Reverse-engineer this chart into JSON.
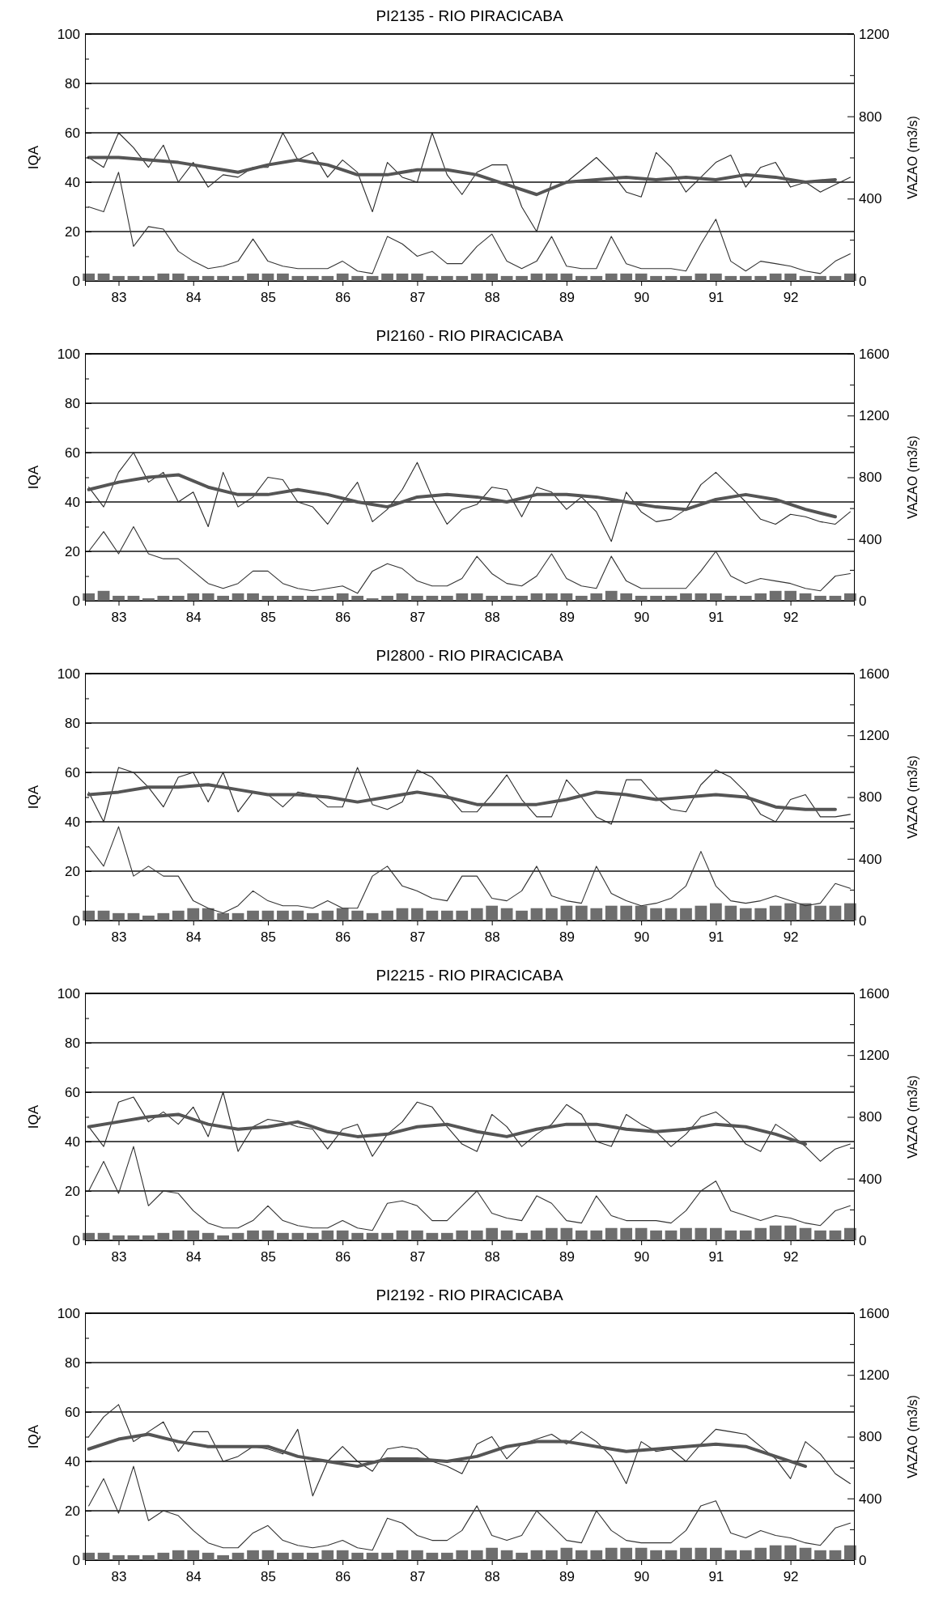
{
  "chart_data": [
    {
      "type": "line",
      "title": "PI2135 - RIO PIRACICABA",
      "ylabel": "IQA",
      "y2label": "VAZAO (m3/s)",
      "grid": "y",
      "xlim": [
        82.55,
        92.85
      ],
      "xticks": [
        83,
        84,
        85,
        86,
        87,
        88,
        89,
        90,
        91,
        92
      ],
      "ylim": [
        0,
        100
      ],
      "yticks": [
        0,
        {
          "value": 10,
          "label": null
        },
        20,
        {
          "value": 30,
          "label": null
        },
        40,
        {
          "value": 50,
          "label": null
        },
        60,
        {
          "value": 70,
          "label": null
        },
        80,
        {
          "value": 90,
          "label": null
        },
        100
      ],
      "y2lim": [
        0,
        1200
      ],
      "y2ticks": [
        0,
        {
          "value": 200,
          "label": null
        },
        400,
        {
          "value": 600,
          "label": null
        },
        800,
        {
          "value": 1000,
          "label": null
        },
        1200
      ],
      "x": [
        82.6,
        82.8,
        83,
        83.2,
        83.4,
        83.6,
        83.8,
        84,
        84.2,
        84.4,
        84.6,
        84.8,
        85,
        85.2,
        85.4,
        85.6,
        85.8,
        86,
        86.2,
        86.4,
        86.6,
        86.8,
        87,
        87.2,
        87.4,
        87.6,
        87.8,
        88,
        88.2,
        88.4,
        88.6,
        88.8,
        89,
        89.2,
        89.4,
        89.6,
        89.8,
        90,
        90.2,
        90.4,
        90.6,
        90.8,
        91,
        91.2,
        91.4,
        91.6,
        91.8,
        92,
        92.2,
        92.4,
        92.6,
        92.8
      ],
      "series": [
        {
          "type": "bar",
          "color": "#6e6e6e",
          "values": [
            3,
            3,
            2,
            2,
            2,
            3,
            3,
            2,
            2,
            2,
            2,
            3,
            3,
            3,
            2,
            2,
            2,
            3,
            2,
            2,
            3,
            3,
            3,
            2,
            2,
            2,
            3,
            3,
            2,
            2,
            3,
            3,
            3,
            2,
            2,
            3,
            3,
            3,
            2,
            2,
            2,
            3,
            3,
            2,
            2,
            2,
            3,
            3,
            2,
            2,
            2,
            3
          ]
        },
        {
          "color": "#2a2a2a",
          "values": [
            50,
            46,
            60,
            54,
            46,
            55,
            40,
            48,
            38,
            43,
            42,
            46,
            46,
            60,
            49,
            52,
            42,
            49,
            44,
            28,
            48,
            42,
            40,
            60,
            43,
            35,
            44,
            47,
            47,
            30,
            20,
            40,
            40,
            45,
            50,
            44,
            36,
            34,
            52,
            46,
            36,
            42,
            48,
            51,
            38,
            46,
            48,
            38,
            40,
            36,
            39,
            42
          ]
        },
        {
          "color": "#555555",
          "x": [
            82.6,
            83,
            83.4,
            83.8,
            84.2,
            84.6,
            85,
            85.4,
            85.8,
            86.2,
            86.6,
            87,
            87.4,
            87.8,
            88.2,
            88.6,
            89,
            89.4,
            89.8,
            90.2,
            90.6,
            91,
            91.4,
            91.8,
            92.2,
            92.6
          ],
          "values": [
            50,
            50,
            49,
            48,
            46,
            44,
            47,
            49,
            47,
            43,
            43,
            45,
            45,
            43,
            39,
            35,
            40,
            41,
            42,
            41,
            42,
            41,
            43,
            42,
            40,
            41
          ]
        },
        {
          "axis": "y2",
          "color": "#333333",
          "values": [
            360,
            336,
            528,
            168,
            264,
            252,
            144,
            96,
            60,
            72,
            96,
            204,
            96,
            72,
            60,
            60,
            60,
            96,
            48,
            36,
            216,
            180,
            120,
            144,
            84,
            84,
            168,
            228,
            96,
            60,
            96,
            216,
            72,
            60,
            60,
            216,
            84,
            60,
            60,
            60,
            48,
            180,
            300,
            96,
            48,
            96,
            84,
            72,
            48,
            36,
            96,
            132
          ]
        }
      ]
    },
    {
      "type": "line",
      "title": "PI2160 - RIO PIRACICABA",
      "ylabel": "IQA",
      "y2label": "VAZAO (m3/s)",
      "grid": "y",
      "xlim": [
        82.55,
        92.85
      ],
      "xticks": [
        83,
        84,
        85,
        86,
        87,
        88,
        89,
        90,
        91,
        92
      ],
      "ylim": [
        0,
        100
      ],
      "yticks": [
        0,
        {
          "value": 10,
          "label": null
        },
        20,
        {
          "value": 30,
          "label": null
        },
        40,
        {
          "value": 50,
          "label": null
        },
        60,
        {
          "value": 70,
          "label": null
        },
        80,
        {
          "value": 90,
          "label": null
        },
        100
      ],
      "y2lim": [
        0,
        1600
      ],
      "y2ticks": [
        0,
        {
          "value": 200,
          "label": null
        },
        400,
        {
          "value": 600,
          "label": null
        },
        800,
        {
          "value": 1000,
          "label": null
        },
        1200,
        {
          "value": 1400,
          "label": null
        },
        1600
      ],
      "x": [
        82.6,
        82.8,
        83,
        83.2,
        83.4,
        83.6,
        83.8,
        84,
        84.2,
        84.4,
        84.6,
        84.8,
        85,
        85.2,
        85.4,
        85.6,
        85.8,
        86,
        86.2,
        86.4,
        86.6,
        86.8,
        87,
        87.2,
        87.4,
        87.6,
        87.8,
        88,
        88.2,
        88.4,
        88.6,
        88.8,
        89,
        89.2,
        89.4,
        89.6,
        89.8,
        90,
        90.2,
        90.4,
        90.6,
        90.8,
        91,
        91.2,
        91.4,
        91.6,
        91.8,
        92,
        92.2,
        92.4,
        92.6,
        92.8
      ],
      "series": [
        {
          "type": "bar",
          "color": "#6e6e6e",
          "values": [
            3,
            4,
            2,
            2,
            1,
            2,
            2,
            3,
            3,
            2,
            3,
            3,
            2,
            2,
            2,
            2,
            2,
            3,
            2,
            1,
            2,
            3,
            2,
            2,
            2,
            3,
            3,
            2,
            2,
            2,
            3,
            3,
            3,
            2,
            3,
            4,
            3,
            2,
            2,
            2,
            3,
            3,
            3,
            2,
            2,
            3,
            4,
            4,
            3,
            2,
            2,
            3
          ]
        },
        {
          "color": "#2a2a2a",
          "values": [
            46,
            38,
            52,
            60,
            48,
            52,
            40,
            44,
            30,
            52,
            38,
            42,
            50,
            49,
            40,
            38,
            31,
            40,
            48,
            32,
            37,
            45,
            56,
            42,
            31,
            37,
            39,
            46,
            45,
            34,
            46,
            44,
            37,
            42,
            36,
            24,
            44,
            36,
            32,
            33,
            37,
            47,
            52,
            46,
            40,
            33,
            31,
            35,
            34,
            32,
            31,
            36
          ]
        },
        {
          "color": "#555555",
          "x": [
            82.6,
            83,
            83.4,
            83.8,
            84.2,
            84.6,
            85,
            85.4,
            85.8,
            86.2,
            86.6,
            87,
            87.4,
            87.8,
            88.2,
            88.6,
            89,
            89.4,
            89.8,
            90.2,
            90.6,
            91,
            91.4,
            91.8,
            92.2,
            92.6
          ],
          "values": [
            45,
            48,
            50,
            51,
            46,
            43,
            43,
            45,
            43,
            40,
            38,
            42,
            43,
            42,
            40,
            43,
            43,
            42,
            40,
            38,
            37,
            41,
            43,
            41,
            37,
            34
          ]
        },
        {
          "axis": "y2",
          "color": "#333333",
          "values": [
            320,
            448,
            304,
            480,
            304,
            272,
            272,
            192,
            112,
            80,
            112,
            192,
            192,
            112,
            80,
            64,
            80,
            96,
            48,
            192,
            240,
            208,
            128,
            96,
            96,
            144,
            288,
            176,
            112,
            96,
            160,
            304,
            144,
            96,
            80,
            288,
            128,
            80,
            80,
            80,
            80,
            192,
            320,
            160,
            112,
            144,
            128,
            112,
            80,
            64,
            160,
            176
          ]
        }
      ]
    },
    {
      "type": "line",
      "title": "PI2800 - RIO PIRACICABA",
      "ylabel": "IQA",
      "y2label": "VAZAO (m3/s)",
      "grid": "y",
      "xlim": [
        82.55,
        92.85
      ],
      "xticks": [
        83,
        84,
        85,
        86,
        87,
        88,
        89,
        90,
        91,
        92
      ],
      "ylim": [
        0,
        100
      ],
      "yticks": [
        0,
        {
          "value": 10,
          "label": null
        },
        20,
        {
          "value": 30,
          "label": null
        },
        40,
        {
          "value": 50,
          "label": null
        },
        60,
        {
          "value": 70,
          "label": null
        },
        80,
        {
          "value": 90,
          "label": null
        },
        100
      ],
      "y2lim": [
        0,
        1600
      ],
      "y2ticks": [
        0,
        {
          "value": 200,
          "label": null
        },
        400,
        {
          "value": 600,
          "label": null
        },
        800,
        {
          "value": 1000,
          "label": null
        },
        1200,
        {
          "value": 1400,
          "label": null
        },
        1600
      ],
      "x": [
        82.6,
        82.8,
        83,
        83.2,
        83.4,
        83.6,
        83.8,
        84,
        84.2,
        84.4,
        84.6,
        84.8,
        85,
        85.2,
        85.4,
        85.6,
        85.8,
        86,
        86.2,
        86.4,
        86.6,
        86.8,
        87,
        87.2,
        87.4,
        87.6,
        87.8,
        88,
        88.2,
        88.4,
        88.6,
        88.8,
        89,
        89.2,
        89.4,
        89.6,
        89.8,
        90,
        90.2,
        90.4,
        90.6,
        90.8,
        91,
        91.2,
        91.4,
        91.6,
        91.8,
        92,
        92.2,
        92.4,
        92.6,
        92.8
      ],
      "series": [
        {
          "type": "bar",
          "color": "#6e6e6e",
          "values": [
            4,
            4,
            3,
            3,
            2,
            3,
            4,
            5,
            5,
            3,
            3,
            4,
            4,
            4,
            4,
            3,
            4,
            5,
            4,
            3,
            4,
            5,
            5,
            4,
            4,
            4,
            5,
            6,
            5,
            4,
            5,
            5,
            6,
            6,
            5,
            6,
            6,
            6,
            5,
            5,
            5,
            6,
            7,
            6,
            5,
            5,
            6,
            7,
            7,
            6,
            6,
            7
          ]
        },
        {
          "color": "#2a2a2a",
          "values": [
            52,
            40,
            62,
            60,
            54,
            46,
            58,
            60,
            48,
            60,
            44,
            52,
            51,
            46,
            52,
            51,
            46,
            46,
            62,
            47,
            45,
            48,
            61,
            58,
            51,
            44,
            44,
            51,
            59,
            49,
            42,
            42,
            57,
            50,
            42,
            39,
            57,
            57,
            50,
            45,
            44,
            55,
            61,
            58,
            52,
            43,
            40,
            49,
            51,
            42,
            42,
            43
          ]
        },
        {
          "color": "#555555",
          "x": [
            82.6,
            83,
            83.4,
            83.8,
            84.2,
            84.6,
            85,
            85.4,
            85.8,
            86.2,
            86.6,
            87,
            87.4,
            87.8,
            88.2,
            88.6,
            89,
            89.4,
            89.8,
            90.2,
            90.6,
            91,
            91.4,
            91.8,
            92.2,
            92.6
          ],
          "values": [
            51,
            52,
            54,
            54,
            55,
            53,
            51,
            51,
            50,
            48,
            50,
            52,
            50,
            47,
            47,
            47,
            49,
            52,
            51,
            49,
            50,
            51,
            50,
            46,
            45,
            45
          ]
        },
        {
          "axis": "y2",
          "color": "#333333",
          "values": [
            480,
            352,
            608,
            288,
            352,
            288,
            288,
            128,
            80,
            48,
            96,
            192,
            128,
            96,
            96,
            80,
            128,
            80,
            80,
            288,
            352,
            224,
            192,
            144,
            128,
            288,
            288,
            144,
            128,
            192,
            352,
            160,
            128,
            112,
            352,
            176,
            128,
            96,
            112,
            144,
            224,
            448,
            224,
            128,
            112,
            128,
            160,
            128,
            96,
            112,
            240,
            208
          ]
        }
      ]
    },
    {
      "type": "line",
      "title": "PI2215 - RIO PIRACICABA",
      "ylabel": "IQA",
      "y2label": "VAZAO (m3/s)",
      "grid": "y",
      "xlim": [
        82.55,
        92.85
      ],
      "xticks": [
        83,
        84,
        85,
        86,
        87,
        88,
        89,
        90,
        91,
        92
      ],
      "ylim": [
        0,
        100
      ],
      "yticks": [
        0,
        {
          "value": 10,
          "label": null
        },
        20,
        {
          "value": 30,
          "label": null
        },
        40,
        {
          "value": 50,
          "label": null
        },
        60,
        {
          "value": 70,
          "label": null
        },
        80,
        {
          "value": 90,
          "label": null
        },
        100
      ],
      "y2lim": [
        0,
        1600
      ],
      "y2ticks": [
        0,
        {
          "value": 200,
          "label": null
        },
        400,
        {
          "value": 600,
          "label": null
        },
        800,
        {
          "value": 1000,
          "label": null
        },
        1200,
        {
          "value": 1400,
          "label": null
        },
        1600
      ],
      "x": [
        82.6,
        82.8,
        83,
        83.2,
        83.4,
        83.6,
        83.8,
        84,
        84.2,
        84.4,
        84.6,
        84.8,
        85,
        85.2,
        85.4,
        85.6,
        85.8,
        86,
        86.2,
        86.4,
        86.6,
        86.8,
        87,
        87.2,
        87.4,
        87.6,
        87.8,
        88,
        88.2,
        88.4,
        88.6,
        88.8,
        89,
        89.2,
        89.4,
        89.6,
        89.8,
        90,
        90.2,
        90.4,
        90.6,
        90.8,
        91,
        91.2,
        91.4,
        91.6,
        91.8,
        92,
        92.2,
        92.4,
        92.6,
        92.8
      ],
      "series": [
        {
          "type": "bar",
          "color": "#6e6e6e",
          "values": [
            3,
            3,
            2,
            2,
            2,
            3,
            4,
            4,
            3,
            2,
            3,
            4,
            4,
            3,
            3,
            3,
            4,
            4,
            3,
            3,
            3,
            4,
            4,
            3,
            3,
            4,
            4,
            5,
            4,
            3,
            4,
            5,
            5,
            4,
            4,
            5,
            5,
            5,
            4,
            4,
            5,
            5,
            5,
            4,
            4,
            5,
            6,
            6,
            5,
            4,
            4,
            5
          ]
        },
        {
          "color": "#2a2a2a",
          "values": [
            46,
            38,
            56,
            58,
            48,
            52,
            47,
            54,
            42,
            60,
            36,
            46,
            49,
            48,
            46,
            45,
            37,
            45,
            47,
            34,
            43,
            48,
            56,
            54,
            46,
            39,
            36,
            51,
            46,
            38,
            43,
            47,
            55,
            51,
            40,
            38,
            51,
            47,
            44,
            38,
            43,
            50,
            52,
            47,
            39,
            36,
            47,
            43,
            38,
            32,
            37,
            39
          ]
        },
        {
          "color": "#555555",
          "x": [
            82.6,
            83,
            83.4,
            83.8,
            84.2,
            84.6,
            85,
            85.4,
            85.8,
            86.2,
            86.6,
            87,
            87.4,
            87.8,
            88.2,
            88.6,
            89,
            89.4,
            89.8,
            90.2,
            90.6,
            91,
            91.4,
            91.8,
            92.2
          ],
          "values": [
            46,
            48,
            50,
            51,
            47,
            45,
            46,
            48,
            44,
            42,
            43,
            46,
            47,
            44,
            42,
            45,
            47,
            47,
            45,
            44,
            45,
            47,
            46,
            43,
            39
          ]
        },
        {
          "axis": "y2",
          "color": "#333333",
          "values": [
            320,
            512,
            304,
            608,
            224,
            320,
            304,
            192,
            112,
            80,
            80,
            128,
            224,
            128,
            96,
            80,
            80,
            128,
            80,
            64,
            240,
            256,
            224,
            128,
            128,
            224,
            320,
            176,
            144,
            128,
            288,
            240,
            128,
            112,
            288,
            160,
            128,
            128,
            128,
            112,
            192,
            320,
            384,
            192,
            160,
            128,
            160,
            144,
            112,
            96,
            192,
            224
          ]
        }
      ]
    },
    {
      "type": "line",
      "title": "PI2192 - RIO PIRACICABA",
      "ylabel": "IQA",
      "y2label": "VAZAO (m3/s)",
      "grid": "y",
      "xlim": [
        82.55,
        92.85
      ],
      "xticks": [
        83,
        84,
        85,
        86,
        87,
        88,
        89,
        90,
        91,
        92
      ],
      "ylim": [
        0,
        100
      ],
      "yticks": [
        0,
        {
          "value": 10,
          "label": null
        },
        20,
        {
          "value": 30,
          "label": null
        },
        40,
        {
          "value": 50,
          "label": null
        },
        60,
        {
          "value": 70,
          "label": null
        },
        80,
        {
          "value": 90,
          "label": null
        },
        100
      ],
      "y2lim": [
        0,
        1600
      ],
      "y2ticks": [
        0,
        {
          "value": 200,
          "label": null
        },
        400,
        {
          "value": 600,
          "label": null
        },
        800,
        {
          "value": 1000,
          "label": null
        },
        1200,
        {
          "value": 1400,
          "label": null
        },
        1600
      ],
      "x": [
        82.6,
        82.8,
        83,
        83.2,
        83.4,
        83.6,
        83.8,
        84,
        84.2,
        84.4,
        84.6,
        84.8,
        85,
        85.2,
        85.4,
        85.6,
        85.8,
        86,
        86.2,
        86.4,
        86.6,
        86.8,
        87,
        87.2,
        87.4,
        87.6,
        87.8,
        88,
        88.2,
        88.4,
        88.6,
        88.8,
        89,
        89.2,
        89.4,
        89.6,
        89.8,
        90,
        90.2,
        90.4,
        90.6,
        90.8,
        91,
        91.2,
        91.4,
        91.6,
        91.8,
        92,
        92.2,
        92.4,
        92.6,
        92.8
      ],
      "series": [
        {
          "type": "bar",
          "color": "#6e6e6e",
          "values": [
            3,
            3,
            2,
            2,
            2,
            3,
            4,
            4,
            3,
            2,
            3,
            4,
            4,
            3,
            3,
            3,
            4,
            4,
            3,
            3,
            3,
            4,
            4,
            3,
            3,
            4,
            4,
            5,
            4,
            3,
            4,
            4,
            5,
            4,
            4,
            5,
            5,
            5,
            4,
            4,
            5,
            5,
            5,
            4,
            4,
            5,
            6,
            6,
            5,
            4,
            4,
            6
          ]
        },
        {
          "color": "#2a2a2a",
          "values": [
            50,
            58,
            63,
            48,
            52,
            56,
            44,
            52,
            52,
            40,
            42,
            46,
            45,
            43,
            53,
            26,
            40,
            46,
            40,
            36,
            45,
            46,
            45,
            40,
            38,
            35,
            47,
            50,
            41,
            47,
            49,
            51,
            47,
            52,
            48,
            42,
            31,
            48,
            44,
            45,
            40,
            47,
            53,
            52,
            51,
            46,
            41,
            33,
            48,
            43,
            35,
            31
          ]
        },
        {
          "color": "#555555",
          "x": [
            82.6,
            83,
            83.4,
            83.8,
            84.2,
            84.6,
            85,
            85.4,
            85.8,
            86.2,
            86.6,
            87,
            87.4,
            87.8,
            88.2,
            88.6,
            89,
            89.4,
            89.8,
            90.2,
            90.6,
            91,
            91.4,
            91.8,
            92.2
          ],
          "values": [
            45,
            49,
            51,
            48,
            46,
            46,
            46,
            42,
            40,
            38,
            41,
            41,
            40,
            42,
            46,
            48,
            48,
            46,
            44,
            45,
            46,
            47,
            46,
            42,
            38
          ]
        },
        {
          "axis": "y2",
          "color": "#333333",
          "values": [
            352,
            528,
            304,
            608,
            256,
            320,
            288,
            192,
            112,
            80,
            80,
            176,
            224,
            128,
            96,
            80,
            96,
            128,
            80,
            64,
            272,
            240,
            160,
            128,
            128,
            192,
            352,
            160,
            128,
            160,
            320,
            224,
            128,
            112,
            320,
            192,
            128,
            112,
            112,
            112,
            192,
            352,
            384,
            176,
            144,
            192,
            160,
            144,
            112,
            96,
            208,
            240
          ]
        }
      ]
    }
  ]
}
